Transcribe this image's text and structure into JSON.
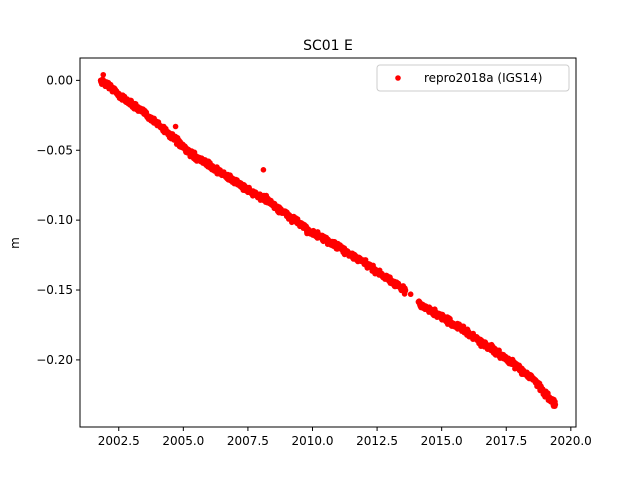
{
  "chart_data": {
    "type": "scatter",
    "title": "SC01 E",
    "xlabel": "",
    "ylabel": "m",
    "xlim": [
      2001.0,
      2020.2
    ],
    "ylim": [
      -0.248,
      0.016
    ],
    "x_ticks": [
      2002.5,
      2005.0,
      2007.5,
      2010.0,
      2012.5,
      2015.0,
      2017.5,
      2020.0
    ],
    "x_tick_labels": [
      "2002.5",
      "2005.0",
      "2007.5",
      "2010.0",
      "2012.5",
      "2015.0",
      "2017.5",
      "2020.0"
    ],
    "y_ticks": [
      0.0,
      -0.05,
      -0.1,
      -0.15,
      -0.2
    ],
    "y_tick_labels": [
      "0.00",
      "−0.05",
      "−0.10",
      "−0.15",
      "−0.20"
    ],
    "grid": false,
    "legend_position": "top-right",
    "series": [
      {
        "name": "repro2018a (IGS14)",
        "color": "#ff0000",
        "marker": "circle",
        "x": [
          1.8,
          2.2,
          2.6,
          3.0,
          3.4,
          3.8,
          4.2,
          4.6,
          5.0,
          5.4,
          5.8,
          6.2,
          6.6,
          7.0,
          7.4,
          7.8,
          8.2,
          8.6,
          9.0,
          9.4,
          9.8,
          10.2,
          10.6,
          11.0,
          11.4,
          11.8,
          12.2,
          12.6,
          13.0,
          13.4,
          13.8,
          14.2,
          14.6,
          15.0,
          15.4,
          15.8,
          16.2,
          16.6,
          17.0,
          17.4,
          17.8,
          18.2,
          18.6,
          18.9,
          19.4
        ],
        "y": [
          0.0,
          -0.005,
          -0.012,
          -0.017,
          -0.022,
          -0.028,
          -0.034,
          -0.041,
          -0.048,
          -0.054,
          -0.058,
          -0.063,
          -0.068,
          -0.072,
          -0.077,
          -0.082,
          -0.085,
          -0.091,
          -0.096,
          -0.101,
          -0.107,
          -0.111,
          -0.115,
          -0.119,
          -0.124,
          -0.128,
          -0.133,
          -0.138,
          -0.143,
          -0.148,
          -0.153,
          -0.161,
          -0.165,
          -0.169,
          -0.174,
          -0.178,
          -0.183,
          -0.188,
          -0.193,
          -0.198,
          -0.203,
          -0.209,
          -0.214,
          -0.222,
          -0.232
        ],
        "x_offset": 2000
      }
    ],
    "outliers": [
      {
        "x": 2004.7,
        "y": -0.033
      },
      {
        "x": 2008.1,
        "y": -0.064
      },
      {
        "x": 2001.9,
        "y": 0.004
      },
      {
        "x": 2017.9,
        "y": -0.203
      }
    ],
    "gap": {
      "from": 2013.6,
      "to": 2014.1
    }
  }
}
